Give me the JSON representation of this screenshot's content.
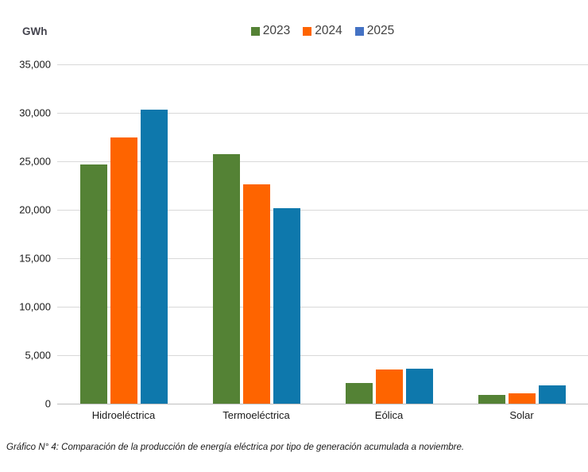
{
  "caption": "Gráfico N° 4: Comparación de la producción de energía eléctrica por tipo de generación acumulada a noviembre.",
  "chart_data": {
    "type": "bar",
    "title": "",
    "unit": "GWh",
    "xlabel": "",
    "ylabel": "GWh",
    "categories": [
      "Hidroeléctrica",
      "Termoeléctrica",
      "Eólica",
      "Solar"
    ],
    "series": [
      {
        "name": "2023",
        "color": "#548235",
        "legend_color": "#548235",
        "values": [
          24700,
          25700,
          2100,
          900
        ]
      },
      {
        "name": "2024",
        "color": "#FE6400",
        "legend_color": "#FE6400",
        "values": [
          27500,
          22600,
          3500,
          1100
        ]
      },
      {
        "name": "2025",
        "color": "#0E78AC",
        "legend_color": "#4472C4",
        "values": [
          30300,
          20200,
          3600,
          1900
        ]
      }
    ],
    "ylim": [
      0,
      35000
    ],
    "ytick_step": 5000,
    "ytick_labels": [
      "0",
      "5,000",
      "10,000",
      "15,000",
      "20,000",
      "25,000",
      "30,000",
      "35,000"
    ],
    "grid": true,
    "legend_position": "top-center",
    "colors": {
      "gridline": "#d9d9d9",
      "axis_line": "#bfbfbf",
      "tick_text": "#1a1a1a",
      "legend_text": "#404040",
      "unit_text": "#44444e"
    }
  }
}
